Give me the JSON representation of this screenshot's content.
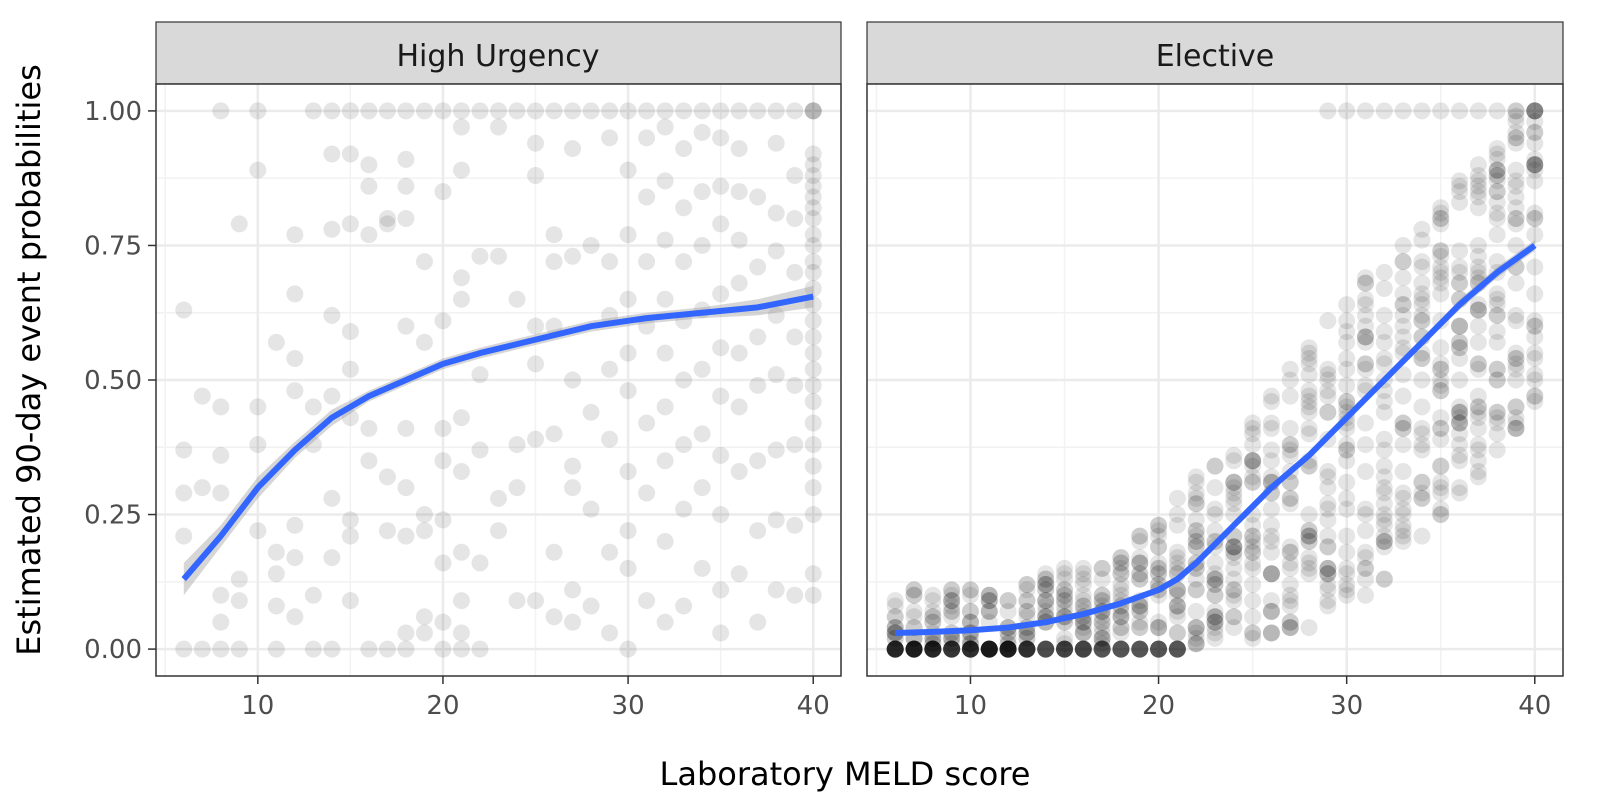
{
  "chart_data": {
    "type": "scatter",
    "xlabel": "Laboratory MELD score",
    "ylabel": "Estimated 90-day event probabilities",
    "xlim": [
      4.5,
      41.5
    ],
    "ylim": [
      -0.05,
      1.05
    ],
    "x_ticks": [
      10,
      20,
      30,
      40
    ],
    "x_tick_labels": [
      "10",
      "20",
      "30",
      "40"
    ],
    "y_ticks": [
      0,
      0.25,
      0.5,
      0.75,
      1
    ],
    "y_tick_labels": [
      "0.00",
      "0.25",
      "0.50",
      "0.75",
      "1.00"
    ],
    "grid": true,
    "point_color": "#000000",
    "point_alpha": 0.1,
    "smooth_color": "#3366ff",
    "ribbon_color": "#999999",
    "panels": [
      {
        "title": "High Urgency",
        "points": [
          [
            6,
            0
          ],
          [
            6,
            0.21
          ],
          [
            6,
            0.29
          ],
          [
            6,
            0.37
          ],
          [
            6,
            0.63
          ],
          [
            7,
            0
          ],
          [
            7,
            0.3
          ],
          [
            7,
            0.47
          ],
          [
            8,
            0
          ],
          [
            8,
            0.05
          ],
          [
            8,
            0.1
          ],
          [
            8,
            0.29
          ],
          [
            8,
            0.36
          ],
          [
            8,
            0.45
          ],
          [
            8,
            1
          ],
          [
            9,
            0
          ],
          [
            9,
            0.09
          ],
          [
            9,
            0.13
          ],
          [
            9,
            0.79
          ],
          [
            10,
            0.22
          ],
          [
            10,
            0.38
          ],
          [
            10,
            0.45
          ],
          [
            10,
            0.89
          ],
          [
            10,
            1
          ],
          [
            11,
            0
          ],
          [
            11,
            0.08
          ],
          [
            11,
            0.14
          ],
          [
            11,
            0.18
          ],
          [
            11,
            0.57
          ],
          [
            12,
            0.06
          ],
          [
            12,
            0.17
          ],
          [
            12,
            0.23
          ],
          [
            12,
            0.48
          ],
          [
            12,
            0.54
          ],
          [
            12,
            0.66
          ],
          [
            12,
            0.77
          ],
          [
            13,
            0
          ],
          [
            13,
            0.1
          ],
          [
            13,
            0.38
          ],
          [
            13,
            0.45
          ],
          [
            13,
            1
          ],
          [
            14,
            0
          ],
          [
            14,
            0.17
          ],
          [
            14,
            0.28
          ],
          [
            14,
            0.47
          ],
          [
            14,
            0.62
          ],
          [
            14,
            0.78
          ],
          [
            14,
            0.92
          ],
          [
            14,
            1
          ],
          [
            15,
            0.09
          ],
          [
            15,
            0.21
          ],
          [
            15,
            0.24
          ],
          [
            15,
            0.43
          ],
          [
            15,
            0.52
          ],
          [
            15,
            0.59
          ],
          [
            15,
            0.79
          ],
          [
            15,
            0.92
          ],
          [
            15,
            1
          ],
          [
            16,
            0
          ],
          [
            16,
            0.35
          ],
          [
            16,
            0.41
          ],
          [
            16,
            0.77
          ],
          [
            16,
            0.86
          ],
          [
            16,
            0.9
          ],
          [
            16,
            1
          ],
          [
            17,
            0
          ],
          [
            17,
            0.22
          ],
          [
            17,
            0.32
          ],
          [
            17,
            0.79
          ],
          [
            17,
            0.8
          ],
          [
            17,
            1
          ],
          [
            18,
            0
          ],
          [
            18,
            0.03
          ],
          [
            18,
            0.21
          ],
          [
            18,
            0.3
          ],
          [
            18,
            0.41
          ],
          [
            18,
            0.6
          ],
          [
            18,
            0.8
          ],
          [
            18,
            0.86
          ],
          [
            18,
            0.91
          ],
          [
            18,
            1
          ],
          [
            19,
            0.03
          ],
          [
            19,
            0.06
          ],
          [
            19,
            0.22
          ],
          [
            19,
            0.25
          ],
          [
            19,
            0.57
          ],
          [
            19,
            0.72
          ],
          [
            19,
            1
          ],
          [
            20,
            0
          ],
          [
            20,
            0.05
          ],
          [
            20,
            0.16
          ],
          [
            20,
            0.24
          ],
          [
            20,
            0.35
          ],
          [
            20,
            0.41
          ],
          [
            20,
            0.61
          ],
          [
            20,
            0.85
          ],
          [
            20,
            1
          ],
          [
            21,
            0
          ],
          [
            21,
            0.03
          ],
          [
            21,
            0.09
          ],
          [
            21,
            0.18
          ],
          [
            21,
            0.33
          ],
          [
            21,
            0.43
          ],
          [
            21,
            0.65
          ],
          [
            21,
            0.69
          ],
          [
            21,
            0.89
          ],
          [
            21,
            0.97
          ],
          [
            21,
            1
          ],
          [
            22,
            0
          ],
          [
            22,
            0.16
          ],
          [
            22,
            0.37
          ],
          [
            22,
            0.51
          ],
          [
            22,
            0.73
          ],
          [
            22,
            1
          ],
          [
            23,
            0.22
          ],
          [
            23,
            0.28
          ],
          [
            23,
            0.73
          ],
          [
            23,
            0.97
          ],
          [
            23,
            1
          ],
          [
            24,
            0.09
          ],
          [
            24,
            0.3
          ],
          [
            24,
            0.38
          ],
          [
            24,
            0.65
          ],
          [
            24,
            1
          ],
          [
            25,
            0.09
          ],
          [
            25,
            0.39
          ],
          [
            25,
            0.53
          ],
          [
            25,
            0.6
          ],
          [
            25,
            0.88
          ],
          [
            25,
            0.94
          ],
          [
            25,
            1
          ],
          [
            26,
            0.06
          ],
          [
            26,
            0.18
          ],
          [
            26,
            0.4
          ],
          [
            26,
            0.6
          ],
          [
            26,
            0.72
          ],
          [
            26,
            0.77
          ],
          [
            26,
            1
          ],
          [
            27,
            0.05
          ],
          [
            27,
            0.11
          ],
          [
            27,
            0.3
          ],
          [
            27,
            0.34
          ],
          [
            27,
            0.5
          ],
          [
            27,
            0.73
          ],
          [
            27,
            0.93
          ],
          [
            27,
            1
          ],
          [
            28,
            0.08
          ],
          [
            28,
            0.26
          ],
          [
            28,
            0.44
          ],
          [
            28,
            0.75
          ],
          [
            28,
            1
          ],
          [
            29,
            0.03
          ],
          [
            29,
            0.18
          ],
          [
            29,
            0.39
          ],
          [
            29,
            0.52
          ],
          [
            29,
            0.62
          ],
          [
            29,
            0.72
          ],
          [
            29,
            0.95
          ],
          [
            29,
            1
          ],
          [
            30,
            0
          ],
          [
            30,
            0.15
          ],
          [
            30,
            0.22
          ],
          [
            30,
            0.33
          ],
          [
            30,
            0.48
          ],
          [
            30,
            0.55
          ],
          [
            30,
            0.65
          ],
          [
            30,
            0.77
          ],
          [
            30,
            0.89
          ],
          [
            30,
            1
          ],
          [
            31,
            0.09
          ],
          [
            31,
            0.29
          ],
          [
            31,
            0.42
          ],
          [
            31,
            0.6
          ],
          [
            31,
            0.72
          ],
          [
            31,
            0.84
          ],
          [
            31,
            0.95
          ],
          [
            31,
            1
          ],
          [
            32,
            0.05
          ],
          [
            32,
            0.2
          ],
          [
            32,
            0.35
          ],
          [
            32,
            0.45
          ],
          [
            32,
            0.55
          ],
          [
            32,
            0.65
          ],
          [
            32,
            0.76
          ],
          [
            32,
            0.87
          ],
          [
            32,
            0.97
          ],
          [
            32,
            1
          ],
          [
            33,
            0.08
          ],
          [
            33,
            0.26
          ],
          [
            33,
            0.38
          ],
          [
            33,
            0.5
          ],
          [
            33,
            0.61
          ],
          [
            33,
            0.72
          ],
          [
            33,
            0.82
          ],
          [
            33,
            0.93
          ],
          [
            33,
            1
          ],
          [
            34,
            0.15
          ],
          [
            34,
            0.3
          ],
          [
            34,
            0.4
          ],
          [
            34,
            0.52
          ],
          [
            34,
            0.63
          ],
          [
            34,
            0.75
          ],
          [
            34,
            0.85
          ],
          [
            34,
            0.96
          ],
          [
            34,
            1
          ],
          [
            35,
            0.03
          ],
          [
            35,
            0.11
          ],
          [
            35,
            0.25
          ],
          [
            35,
            0.36
          ],
          [
            35,
            0.47
          ],
          [
            35,
            0.56
          ],
          [
            35,
            0.66
          ],
          [
            35,
            0.79
          ],
          [
            35,
            0.86
          ],
          [
            35,
            0.95
          ],
          [
            35,
            1
          ],
          [
            36,
            0.14
          ],
          [
            36,
            0.33
          ],
          [
            36,
            0.45
          ],
          [
            36,
            0.55
          ],
          [
            36,
            0.68
          ],
          [
            36,
            0.76
          ],
          [
            36,
            0.85
          ],
          [
            36,
            0.93
          ],
          [
            36,
            1
          ],
          [
            37,
            0.05
          ],
          [
            37,
            0.22
          ],
          [
            37,
            0.35
          ],
          [
            37,
            0.49
          ],
          [
            37,
            0.58
          ],
          [
            37,
            0.71
          ],
          [
            37,
            0.84
          ],
          [
            37,
            1
          ],
          [
            38,
            0.11
          ],
          [
            38,
            0.24
          ],
          [
            38,
            0.37
          ],
          [
            38,
            0.51
          ],
          [
            38,
            0.62
          ],
          [
            38,
            0.74
          ],
          [
            38,
            0.81
          ],
          [
            38,
            0.94
          ],
          [
            38,
            1
          ],
          [
            39,
            0.1
          ],
          [
            39,
            0.23
          ],
          [
            39,
            0.38
          ],
          [
            39,
            0.49
          ],
          [
            39,
            0.58
          ],
          [
            39,
            0.7
          ],
          [
            39,
            0.8
          ],
          [
            39,
            0.88
          ],
          [
            39,
            1
          ],
          [
            40,
            0.1
          ],
          [
            40,
            0.14
          ],
          [
            40,
            0.25
          ],
          [
            40,
            0.3
          ],
          [
            40,
            0.34
          ],
          [
            40,
            0.38
          ],
          [
            40,
            0.42
          ],
          [
            40,
            0.46
          ],
          [
            40,
            0.49
          ],
          [
            40,
            0.52
          ],
          [
            40,
            0.55
          ],
          [
            40,
            0.58
          ],
          [
            40,
            0.61
          ],
          [
            40,
            0.64
          ],
          [
            40,
            0.67
          ],
          [
            40,
            0.7
          ],
          [
            40,
            0.72
          ],
          [
            40,
            0.75
          ],
          [
            40,
            0.77
          ],
          [
            40,
            0.8
          ],
          [
            40,
            0.82
          ],
          [
            40,
            0.84
          ],
          [
            40,
            0.86
          ],
          [
            40,
            0.88
          ],
          [
            40,
            0.9
          ],
          [
            40,
            0.92
          ],
          [
            40,
            1
          ],
          [
            40,
            1
          ],
          [
            40,
            1
          ]
        ],
        "smooth_x": [
          6,
          8,
          10,
          12,
          14,
          16,
          18,
          20,
          22,
          25,
          28,
          31,
          34,
          37,
          40
        ],
        "smooth_y": [
          0.13,
          0.21,
          0.3,
          0.37,
          0.43,
          0.47,
          0.5,
          0.53,
          0.55,
          0.575,
          0.6,
          0.615,
          0.625,
          0.635,
          0.655
        ],
        "ribbon_lower": [
          0.1,
          0.19,
          0.28,
          0.355,
          0.415,
          0.46,
          0.49,
          0.52,
          0.54,
          0.565,
          0.59,
          0.605,
          0.615,
          0.62,
          0.635
        ],
        "ribbon_upper": [
          0.16,
          0.23,
          0.32,
          0.385,
          0.445,
          0.48,
          0.51,
          0.54,
          0.56,
          0.585,
          0.61,
          0.625,
          0.635,
          0.65,
          0.675
        ]
      },
      {
        "title": "Elective",
        "points": [],
        "smooth_x": [
          6,
          8,
          10,
          12,
          14,
          16,
          18,
          20,
          21,
          22,
          24,
          26,
          28,
          30,
          32,
          34,
          36,
          38,
          40
        ],
        "smooth_y": [
          0.03,
          0.032,
          0.035,
          0.04,
          0.05,
          0.065,
          0.085,
          0.11,
          0.13,
          0.16,
          0.23,
          0.3,
          0.36,
          0.43,
          0.5,
          0.57,
          0.64,
          0.7,
          0.75
        ],
        "ribbon_lower": [
          0.025,
          0.028,
          0.032,
          0.037,
          0.047,
          0.062,
          0.082,
          0.105,
          0.125,
          0.155,
          0.225,
          0.295,
          0.355,
          0.425,
          0.495,
          0.565,
          0.63,
          0.69,
          0.74
        ],
        "ribbon_upper": [
          0.035,
          0.036,
          0.038,
          0.043,
          0.053,
          0.068,
          0.088,
          0.115,
          0.135,
          0.165,
          0.235,
          0.305,
          0.365,
          0.435,
          0.505,
          0.575,
          0.65,
          0.71,
          0.76
        ]
      }
    ]
  }
}
